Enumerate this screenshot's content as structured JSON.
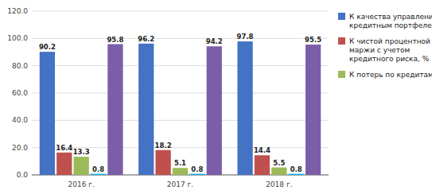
{
  "chart_data": {
    "type": "bar",
    "categories": [
      "2016 г.",
      "2017 г.",
      "2018 г."
    ],
    "series": [
      {
        "name": "К качества управления\nкредитным портфелем, %",
        "color": "#4472C4",
        "values": [
          90.2,
          96.2,
          97.8
        ]
      },
      {
        "name": "К чистой процентной\nмаржи с учетом\nкредитного риска, %",
        "color": "#C0504D",
        "values": [
          16.4,
          18.2,
          14.4
        ]
      },
      {
        "name": "К потерь по кредитам, %",
        "color": "#9BBB59",
        "values": [
          13.3,
          5.1,
          5.5
        ]
      },
      {
        "color": "#00B0F0",
        "values": [
          0.8,
          0.8,
          0.8
        ]
      },
      {
        "color": "#7B5EA7",
        "values": [
          95.8,
          94.2,
          95.5
        ]
      }
    ],
    "ylim": [
      0,
      120
    ],
    "yticks": [
      {
        "value": 0,
        "label": "0.0"
      },
      {
        "value": 20,
        "label": "20.0"
      },
      {
        "value": 40,
        "label": "40.0"
      },
      {
        "value": 60,
        "label": "60.0"
      },
      {
        "value": 80,
        "label": "80.0"
      },
      {
        "value": 100,
        "label": "100.0"
      },
      {
        "value": 120,
        "label": "120.0"
      }
    ],
    "grid": true,
    "legend": "right",
    "data_labels": true
  }
}
